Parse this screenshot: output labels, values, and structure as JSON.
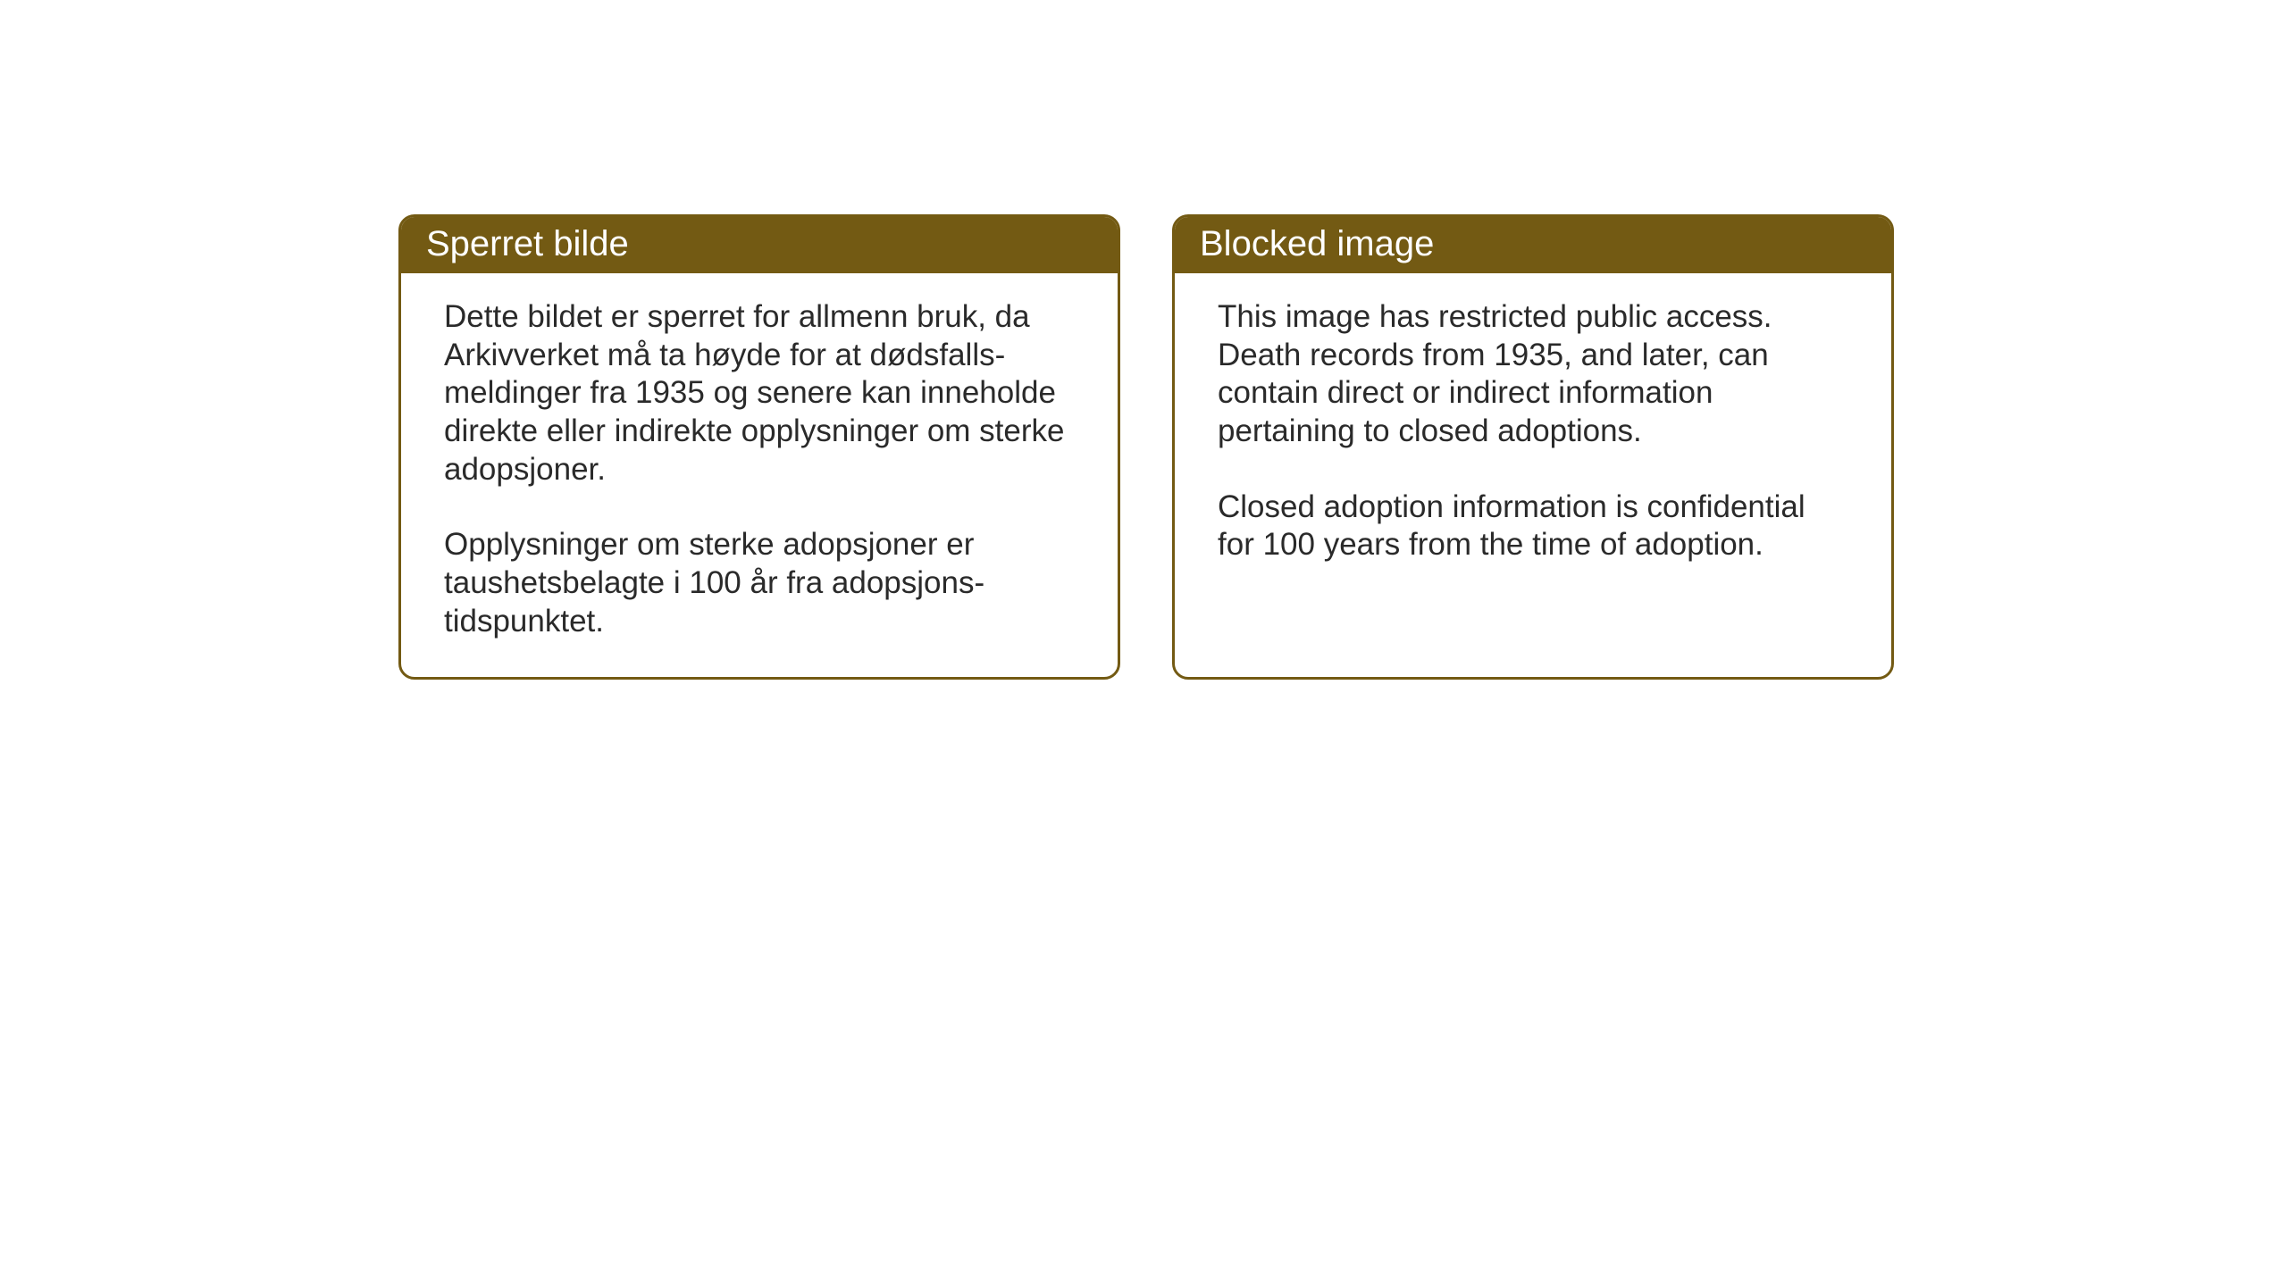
{
  "layout": {
    "background_color": "#ffffff",
    "card_border_color": "#735a13",
    "header_bg_color": "#735a13",
    "header_text_color": "#ffffff",
    "body_text_color": "#2a2a2a",
    "card_border_radius": 18,
    "card_border_width": 3,
    "header_fontsize": 40,
    "body_fontsize": 35
  },
  "cards": {
    "left": {
      "title": "Sperret bilde",
      "p1": "Dette bildet er sperret for allmenn bruk, da Arkivverket må ta høyde for at dødsfalls-meldinger fra 1935 og senere kan inneholde direkte eller indirekte opplysninger om sterke adopsjoner.",
      "p2": "Opplysninger om sterke adopsjoner er taushetsbelagte i 100 år fra adopsjons-tidspunktet."
    },
    "right": {
      "title": "Blocked image",
      "p1": "This image has restricted public access. Death records from 1935, and later, can contain direct or indirect information pertaining to closed adoptions.",
      "p2": "Closed adoption information is confidential for 100 years from the time of adoption."
    }
  }
}
